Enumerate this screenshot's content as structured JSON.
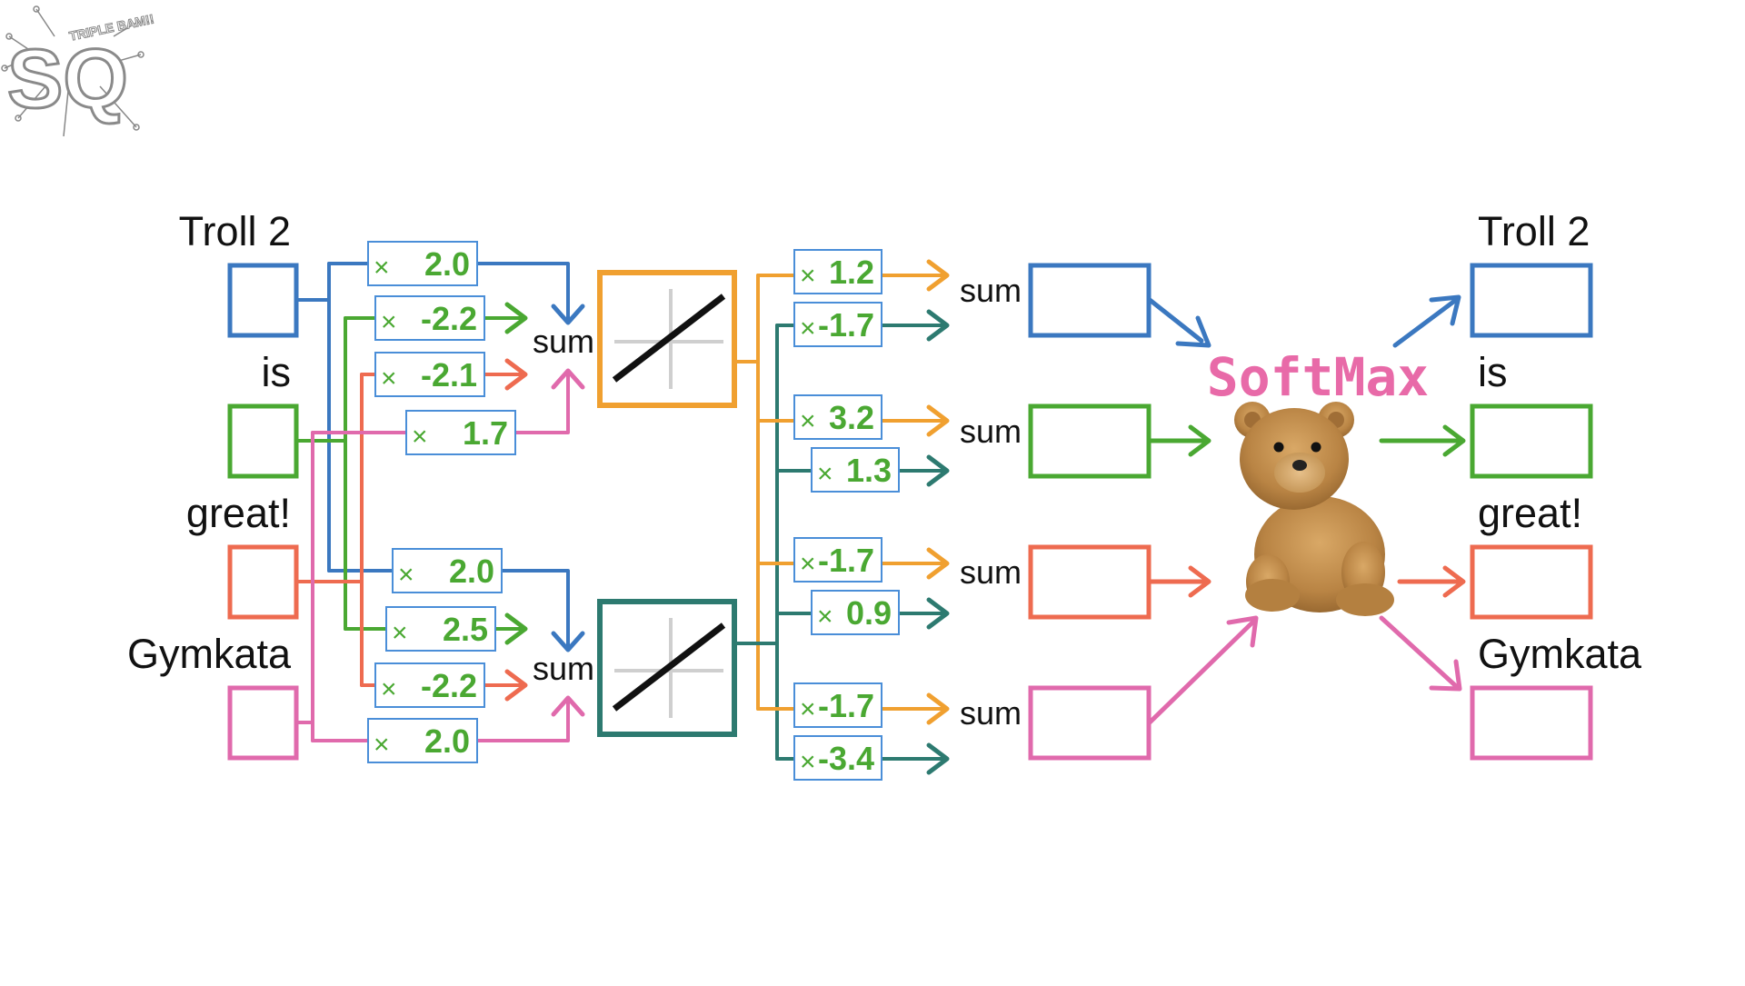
{
  "colors": {
    "blue": "#3b78c0",
    "green": "#4aa832",
    "red": "#ee6b50",
    "pink": "#e06aac",
    "orange": "#f0a030",
    "teal": "#2d7a70",
    "weight_text": "#4aa832",
    "weight_box": "#4a8ed8",
    "softmax_text": "#e86aa8"
  },
  "logo": {
    "initials": "SQ",
    "banner": "TRIPLE BAM!!"
  },
  "inputs": [
    {
      "label": "Troll 2",
      "color": "blue"
    },
    {
      "label": "is",
      "color": "green"
    },
    {
      "label": "great!",
      "color": "red"
    },
    {
      "label": "Gymkata",
      "color": "pink"
    }
  ],
  "input_weights": {
    "node_1": [
      "2.0",
      "-2.2",
      "-2.1",
      "1.7"
    ],
    "node_2": [
      "2.0",
      "2.5",
      "-2.2",
      "2.0"
    ]
  },
  "activation_icons": [
    "identity-activation-icon",
    "identity-activation-icon"
  ],
  "sum_label": "sum",
  "multiply_symbol": "×",
  "output_weights": [
    {
      "from_node_1": "1.2",
      "from_node_2": "-1.7"
    },
    {
      "from_node_1": "3.2",
      "from_node_2": "1.3"
    },
    {
      "from_node_1": "-1.7",
      "from_node_2": "0.9"
    },
    {
      "from_node_1": "-1.7",
      "from_node_2": "-3.4"
    }
  ],
  "softmax": {
    "title": "SoftMax",
    "icon": "teddy-bear-icon"
  },
  "outputs": [
    {
      "label": "Troll 2",
      "color": "blue"
    },
    {
      "label": "is",
      "color": "green"
    },
    {
      "label": "great!",
      "color": "red"
    },
    {
      "label": "Gymkata",
      "color": "pink"
    }
  ]
}
